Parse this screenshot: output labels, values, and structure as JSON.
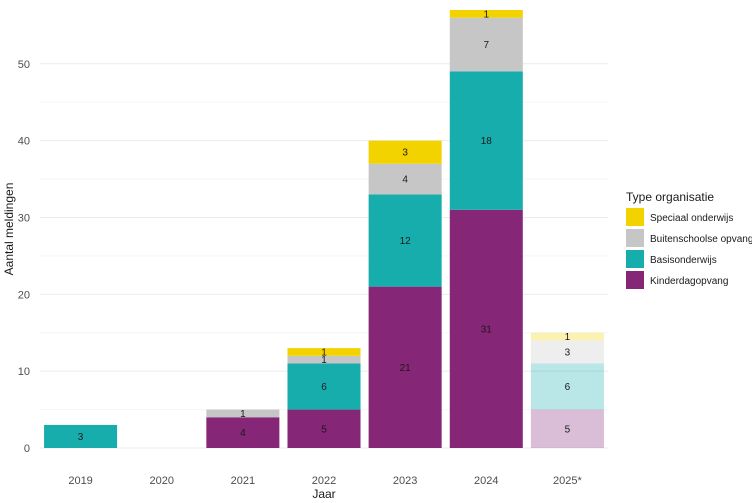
{
  "chart_data": {
    "type": "bar",
    "stacked": true,
    "categories": [
      "2019",
      "2020",
      "2021",
      "2022",
      "2023",
      "2024",
      "2025*"
    ],
    "faded_categories": [
      "2025*"
    ],
    "xlabel": "Jaar",
    "ylabel": "Aantal meldingen",
    "ylim": [
      0,
      57
    ],
    "yticks": [
      0,
      10,
      20,
      30,
      40,
      50
    ],
    "grid": true,
    "legend": {
      "title": "Type organisatie",
      "position": "right"
    },
    "series": [
      {
        "name": "Kinderdagopvang",
        "color": "#862677",
        "values": [
          0,
          0,
          4,
          5,
          21,
          31,
          5
        ]
      },
      {
        "name": "Basisonderwijs",
        "color": "#16ADAC",
        "values": [
          3,
          0,
          0,
          6,
          12,
          18,
          6
        ]
      },
      {
        "name": "Buitenschoolse opvang",
        "color": "#C6C6C6",
        "values": [
          0,
          0,
          1,
          1,
          4,
          7,
          3
        ]
      },
      {
        "name": "Speciaal onderwijs",
        "color": "#F2D300",
        "values": [
          0,
          0,
          0,
          1,
          3,
          1,
          1
        ]
      }
    ],
    "legend_order": [
      "Speciaal onderwijs",
      "Buitenschoolse opvang",
      "Basisonderwijs",
      "Kinderdagopvang"
    ]
  }
}
